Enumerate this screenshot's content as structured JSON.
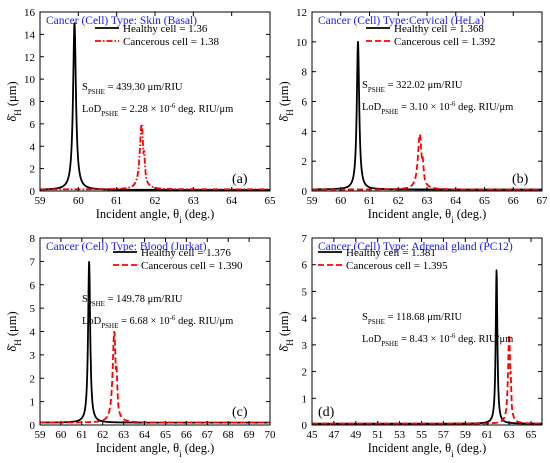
{
  "chart_data": [
    {
      "type": "line",
      "title": "Cancer (Cell) Type: Skin (Basal)",
      "panel_label": "(a)",
      "xlabel": "Incident angle, θi (deg.)",
      "ylabel": "δ̄H (μm)",
      "xlim": [
        59,
        65
      ],
      "ylim": [
        0,
        16
      ],
      "xticks": [
        59,
        60,
        61,
        62,
        63,
        64,
        65
      ],
      "yticks": [
        0,
        2,
        4,
        6,
        8,
        10,
        12,
        14,
        16
      ],
      "legend_position": "top-right",
      "grid": false,
      "series": [
        {
          "name": "Healthy cell = 1.36",
          "style": "solid",
          "color": "#000000",
          "peak_x": 59.9,
          "peak_y": 15.0,
          "secondary_y": 4.6,
          "baseline": 0.1,
          "hwhm": 0.045
        },
        {
          "name": "Cancerous cell = 1.38",
          "style": "dashdot",
          "color": "#ff0000",
          "peak_x": 61.65,
          "peak_y": 6.0,
          "secondary_y": 3.6,
          "baseline": 0.15,
          "hwhm": 0.055
        }
      ],
      "annotations": [
        "S_PSHE = 439.30 μm/RIU",
        "LoD_PSHE = 2.28 × 10^-6 deg. RIU/μm"
      ]
    },
    {
      "type": "line",
      "title": "Cancer (Cell) Type:Cervical (HeLa)",
      "panel_label": "(b)",
      "xlabel": "Incident angle, θi (deg.)",
      "ylabel": "δ̄H (μm)",
      "xlim": [
        59,
        67
      ],
      "ylim": [
        0,
        12
      ],
      "xticks": [
        59,
        60,
        61,
        62,
        63,
        64,
        65,
        66,
        67
      ],
      "yticks": [
        0,
        2,
        4,
        6,
        8,
        10,
        12
      ],
      "legend_position": "top-right",
      "grid": false,
      "series": [
        {
          "name": "Healthy cell = 1.368",
          "style": "solid",
          "color": "#000000",
          "peak_x": 60.6,
          "peak_y": 10.0,
          "secondary_y": 3.2,
          "baseline": 0.1,
          "hwhm": 0.05
        },
        {
          "name": "Cancerous cell = 1.392",
          "style": "dashed",
          "color": "#ff0000",
          "peak_x": 62.75,
          "peak_y": 3.8,
          "secondary_y": 2.4,
          "baseline": 0.1,
          "hwhm": 0.08
        }
      ],
      "annotations": [
        "S_PSHE = 322.02 μm/RIU",
        "LoD_PSHE = 3.10 × 10^-6 deg. RIU/μm"
      ]
    },
    {
      "type": "line",
      "title": "Cancer (Cell) Type: Blood (Jurkat)",
      "panel_label": "(c)",
      "xlabel": "Incident angle, θi (deg.)",
      "ylabel": "δ̄H (μm)",
      "xlim": [
        59,
        70
      ],
      "ylim": [
        0,
        8
      ],
      "xticks": [
        59,
        60,
        61,
        62,
        63,
        64,
        65,
        66,
        67,
        68,
        69,
        70
      ],
      "yticks": [
        0,
        1,
        2,
        3,
        4,
        5,
        6,
        7,
        8
      ],
      "legend_position": "top-right",
      "grid": false,
      "series": [
        {
          "name": "Healthy cell = 1.376",
          "style": "solid",
          "color": "#000000",
          "peak_x": 61.35,
          "peak_y": 7.0,
          "secondary_y": 3.0,
          "baseline": 0.1,
          "hwhm": 0.06
        },
        {
          "name": "Cancerous cell = 1.390",
          "style": "dashed",
          "color": "#ff0000",
          "peak_x": 62.55,
          "peak_y": 4.0,
          "secondary_y": 2.6,
          "baseline": 0.1,
          "hwhm": 0.09
        }
      ],
      "annotations": [
        "S_PSHE = 149.78 μm/RIU",
        "LoD_PSHE = 6.68 × 10^-6 deg. RIU/μm"
      ]
    },
    {
      "type": "line",
      "title": "Cancer (Cell) Type: Adrenal gland (PC12)",
      "panel_label": "(d)",
      "xlabel": "Incident angle, θi (deg.)",
      "ylabel": "δ̄H (μm)",
      "xlim": [
        45,
        66
      ],
      "ylim": [
        0,
        7
      ],
      "xticks": [
        45,
        47,
        49,
        51,
        53,
        55,
        57,
        59,
        61,
        63,
        65
      ],
      "yticks": [
        0,
        1,
        2,
        3,
        4,
        5,
        6,
        7
      ],
      "legend_position": "top-left",
      "grid": false,
      "series": [
        {
          "name": "Healthy cell = 1.381",
          "style": "solid",
          "color": "#000000",
          "peak_x": 61.85,
          "peak_y": 5.8,
          "secondary_y": 2.1,
          "baseline": 0.05,
          "hwhm": 0.09
        },
        {
          "name": "Cancerous cell = 1.395",
          "style": "dashed",
          "color": "#ff0000",
          "peak_x": 63.0,
          "peak_y": 3.4,
          "secondary_y": 2.0,
          "baseline": 0.05,
          "hwhm": 0.12
        }
      ],
      "annotations": [
        "S_PSHE = 118.68 μm/RIU",
        "LoD_PSHE = 8.43 × 10^-6 deg. RIU/μm"
      ]
    }
  ]
}
